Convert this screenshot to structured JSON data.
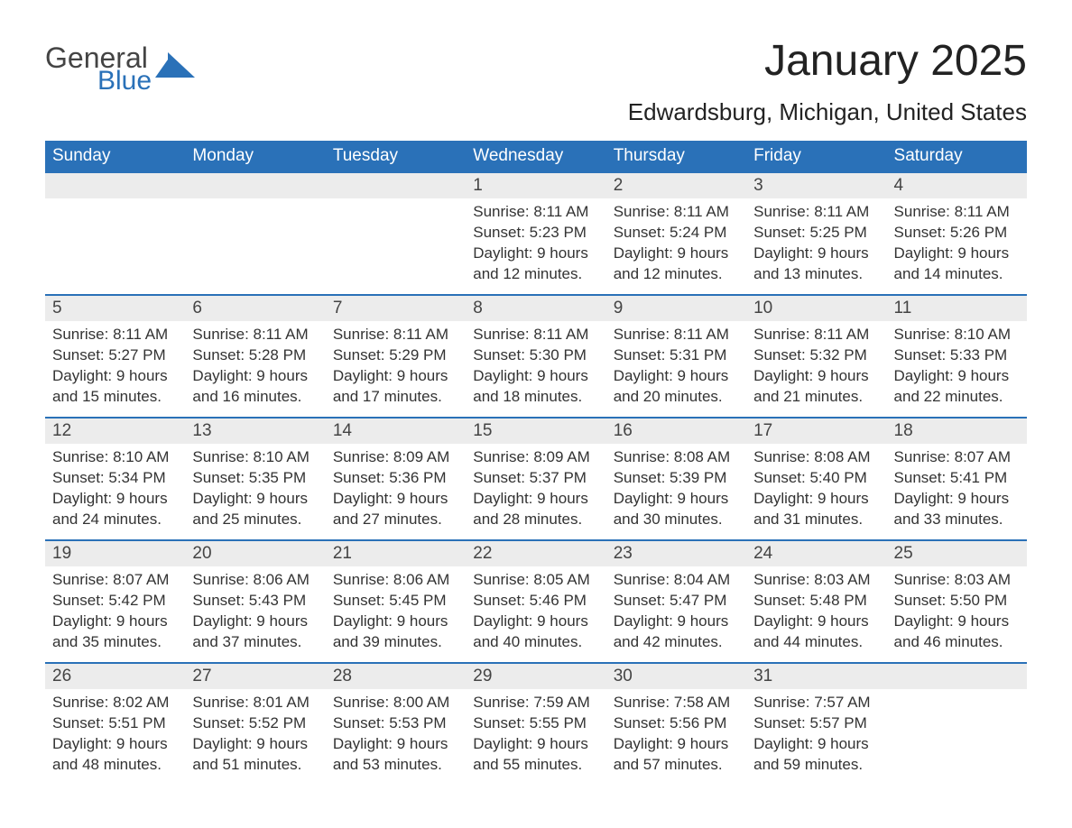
{
  "logo": {
    "word1": "General",
    "word2": "Blue",
    "shape_color": "#2a71b8"
  },
  "title": "January 2025",
  "location": "Edwardsburg, Michigan, United States",
  "day_headers": [
    "Sunday",
    "Monday",
    "Tuesday",
    "Wednesday",
    "Thursday",
    "Friday",
    "Saturday"
  ],
  "colors": {
    "header_bg": "#2a71b8",
    "header_text": "#ffffff",
    "daynum_bg": "#ececec",
    "row_divider": "#2a71b8",
    "body_text": "#333333",
    "background": "#ffffff"
  },
  "typography": {
    "month_title_fontsize": 48,
    "location_fontsize": 26,
    "header_fontsize": 19,
    "daynum_fontsize": 19,
    "body_fontsize": 17
  },
  "weeks": [
    [
      {
        "num": "",
        "sunrise": "",
        "sunset": "",
        "daylight1": "",
        "daylight2": ""
      },
      {
        "num": "",
        "sunrise": "",
        "sunset": "",
        "daylight1": "",
        "daylight2": ""
      },
      {
        "num": "",
        "sunrise": "",
        "sunset": "",
        "daylight1": "",
        "daylight2": ""
      },
      {
        "num": "1",
        "sunrise": "Sunrise: 8:11 AM",
        "sunset": "Sunset: 5:23 PM",
        "daylight1": "Daylight: 9 hours",
        "daylight2": "and 12 minutes."
      },
      {
        "num": "2",
        "sunrise": "Sunrise: 8:11 AM",
        "sunset": "Sunset: 5:24 PM",
        "daylight1": "Daylight: 9 hours",
        "daylight2": "and 12 minutes."
      },
      {
        "num": "3",
        "sunrise": "Sunrise: 8:11 AM",
        "sunset": "Sunset: 5:25 PM",
        "daylight1": "Daylight: 9 hours",
        "daylight2": "and 13 minutes."
      },
      {
        "num": "4",
        "sunrise": "Sunrise: 8:11 AM",
        "sunset": "Sunset: 5:26 PM",
        "daylight1": "Daylight: 9 hours",
        "daylight2": "and 14 minutes."
      }
    ],
    [
      {
        "num": "5",
        "sunrise": "Sunrise: 8:11 AM",
        "sunset": "Sunset: 5:27 PM",
        "daylight1": "Daylight: 9 hours",
        "daylight2": "and 15 minutes."
      },
      {
        "num": "6",
        "sunrise": "Sunrise: 8:11 AM",
        "sunset": "Sunset: 5:28 PM",
        "daylight1": "Daylight: 9 hours",
        "daylight2": "and 16 minutes."
      },
      {
        "num": "7",
        "sunrise": "Sunrise: 8:11 AM",
        "sunset": "Sunset: 5:29 PM",
        "daylight1": "Daylight: 9 hours",
        "daylight2": "and 17 minutes."
      },
      {
        "num": "8",
        "sunrise": "Sunrise: 8:11 AM",
        "sunset": "Sunset: 5:30 PM",
        "daylight1": "Daylight: 9 hours",
        "daylight2": "and 18 minutes."
      },
      {
        "num": "9",
        "sunrise": "Sunrise: 8:11 AM",
        "sunset": "Sunset: 5:31 PM",
        "daylight1": "Daylight: 9 hours",
        "daylight2": "and 20 minutes."
      },
      {
        "num": "10",
        "sunrise": "Sunrise: 8:11 AM",
        "sunset": "Sunset: 5:32 PM",
        "daylight1": "Daylight: 9 hours",
        "daylight2": "and 21 minutes."
      },
      {
        "num": "11",
        "sunrise": "Sunrise: 8:10 AM",
        "sunset": "Sunset: 5:33 PM",
        "daylight1": "Daylight: 9 hours",
        "daylight2": "and 22 minutes."
      }
    ],
    [
      {
        "num": "12",
        "sunrise": "Sunrise: 8:10 AM",
        "sunset": "Sunset: 5:34 PM",
        "daylight1": "Daylight: 9 hours",
        "daylight2": "and 24 minutes."
      },
      {
        "num": "13",
        "sunrise": "Sunrise: 8:10 AM",
        "sunset": "Sunset: 5:35 PM",
        "daylight1": "Daylight: 9 hours",
        "daylight2": "and 25 minutes."
      },
      {
        "num": "14",
        "sunrise": "Sunrise: 8:09 AM",
        "sunset": "Sunset: 5:36 PM",
        "daylight1": "Daylight: 9 hours",
        "daylight2": "and 27 minutes."
      },
      {
        "num": "15",
        "sunrise": "Sunrise: 8:09 AM",
        "sunset": "Sunset: 5:37 PM",
        "daylight1": "Daylight: 9 hours",
        "daylight2": "and 28 minutes."
      },
      {
        "num": "16",
        "sunrise": "Sunrise: 8:08 AM",
        "sunset": "Sunset: 5:39 PM",
        "daylight1": "Daylight: 9 hours",
        "daylight2": "and 30 minutes."
      },
      {
        "num": "17",
        "sunrise": "Sunrise: 8:08 AM",
        "sunset": "Sunset: 5:40 PM",
        "daylight1": "Daylight: 9 hours",
        "daylight2": "and 31 minutes."
      },
      {
        "num": "18",
        "sunrise": "Sunrise: 8:07 AM",
        "sunset": "Sunset: 5:41 PM",
        "daylight1": "Daylight: 9 hours",
        "daylight2": "and 33 minutes."
      }
    ],
    [
      {
        "num": "19",
        "sunrise": "Sunrise: 8:07 AM",
        "sunset": "Sunset: 5:42 PM",
        "daylight1": "Daylight: 9 hours",
        "daylight2": "and 35 minutes."
      },
      {
        "num": "20",
        "sunrise": "Sunrise: 8:06 AM",
        "sunset": "Sunset: 5:43 PM",
        "daylight1": "Daylight: 9 hours",
        "daylight2": "and 37 minutes."
      },
      {
        "num": "21",
        "sunrise": "Sunrise: 8:06 AM",
        "sunset": "Sunset: 5:45 PM",
        "daylight1": "Daylight: 9 hours",
        "daylight2": "and 39 minutes."
      },
      {
        "num": "22",
        "sunrise": "Sunrise: 8:05 AM",
        "sunset": "Sunset: 5:46 PM",
        "daylight1": "Daylight: 9 hours",
        "daylight2": "and 40 minutes."
      },
      {
        "num": "23",
        "sunrise": "Sunrise: 8:04 AM",
        "sunset": "Sunset: 5:47 PM",
        "daylight1": "Daylight: 9 hours",
        "daylight2": "and 42 minutes."
      },
      {
        "num": "24",
        "sunrise": "Sunrise: 8:03 AM",
        "sunset": "Sunset: 5:48 PM",
        "daylight1": "Daylight: 9 hours",
        "daylight2": "and 44 minutes."
      },
      {
        "num": "25",
        "sunrise": "Sunrise: 8:03 AM",
        "sunset": "Sunset: 5:50 PM",
        "daylight1": "Daylight: 9 hours",
        "daylight2": "and 46 minutes."
      }
    ],
    [
      {
        "num": "26",
        "sunrise": "Sunrise: 8:02 AM",
        "sunset": "Sunset: 5:51 PM",
        "daylight1": "Daylight: 9 hours",
        "daylight2": "and 48 minutes."
      },
      {
        "num": "27",
        "sunrise": "Sunrise: 8:01 AM",
        "sunset": "Sunset: 5:52 PM",
        "daylight1": "Daylight: 9 hours",
        "daylight2": "and 51 minutes."
      },
      {
        "num": "28",
        "sunrise": "Sunrise: 8:00 AM",
        "sunset": "Sunset: 5:53 PM",
        "daylight1": "Daylight: 9 hours",
        "daylight2": "and 53 minutes."
      },
      {
        "num": "29",
        "sunrise": "Sunrise: 7:59 AM",
        "sunset": "Sunset: 5:55 PM",
        "daylight1": "Daylight: 9 hours",
        "daylight2": "and 55 minutes."
      },
      {
        "num": "30",
        "sunrise": "Sunrise: 7:58 AM",
        "sunset": "Sunset: 5:56 PM",
        "daylight1": "Daylight: 9 hours",
        "daylight2": "and 57 minutes."
      },
      {
        "num": "31",
        "sunrise": "Sunrise: 7:57 AM",
        "sunset": "Sunset: 5:57 PM",
        "daylight1": "Daylight: 9 hours",
        "daylight2": "and 59 minutes."
      },
      {
        "num": "",
        "sunrise": "",
        "sunset": "",
        "daylight1": "",
        "daylight2": ""
      }
    ]
  ]
}
